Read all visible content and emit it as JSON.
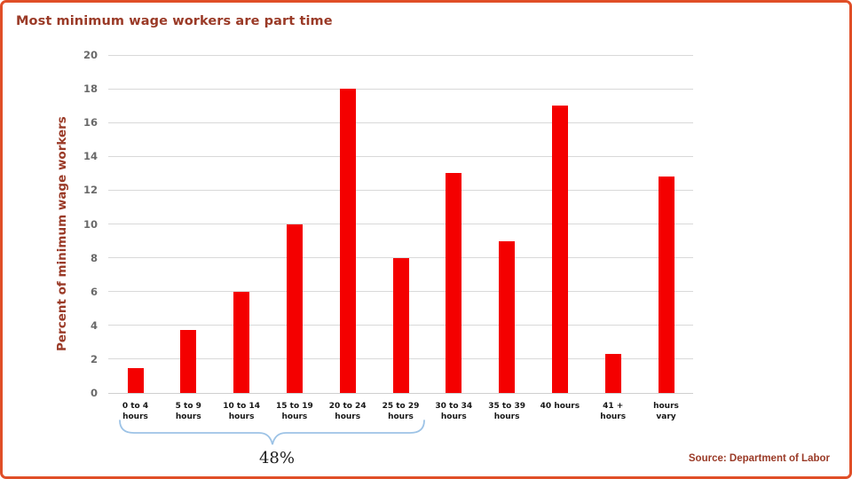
{
  "page": {
    "title": "Most minimum wage workers are part time",
    "source": "Source: Department of Labor"
  },
  "colors": {
    "bar": "#f40000",
    "gridline": "#d9d9d9",
    "heading_text": "#9a3a27",
    "tick_text": "#696969",
    "xlabel_text": "#161616",
    "bracket": "#9dc3e6",
    "slide_border": "#e04e27"
  },
  "chart_data": {
    "type": "bar",
    "title": "Most minimum wage workers are part time",
    "xlabel": "",
    "ylabel": "Percent of minimum wage workers",
    "ylim": [
      0,
      20
    ],
    "ytick_step": 2,
    "grid": true,
    "legend": false,
    "categories": [
      {
        "line1": "0  to  4",
        "line2": "hours"
      },
      {
        "line1": "5  to  9",
        "line2": "hours"
      },
      {
        "line1": "10 to 14",
        "line2": "hours"
      },
      {
        "line1": "15 to 19",
        "line2": "hours"
      },
      {
        "line1": "20 to 24",
        "line2": "hours"
      },
      {
        "line1": "25 to 29",
        "line2": "hours"
      },
      {
        "line1": "30 to 34",
        "line2": "hours"
      },
      {
        "line1": "35 to 39",
        "line2": "hours"
      },
      {
        "line1": "40 hours",
        "line2": ""
      },
      {
        "line1": "41 +",
        "line2": "hours"
      },
      {
        "line1": "hours",
        "line2": "vary"
      }
    ],
    "values": [
      1.45,
      3.75,
      6,
      10,
      18,
      8,
      13,
      9,
      17,
      2.3,
      12.8
    ],
    "bracket": {
      "from_category": "0 to 4 hours",
      "to_category": "25 to 29 hours",
      "label": "48%",
      "note": "brace spans the six part-time categories totaling 48%"
    }
  }
}
